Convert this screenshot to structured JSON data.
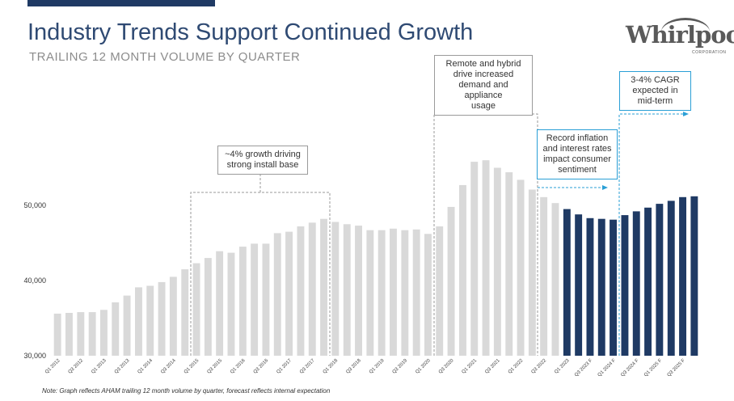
{
  "header": {
    "title": "Industry Trends Support Continued Growth",
    "subtitle": "TRAILING 12 MONTH VOLUME BY QUARTER"
  },
  "logo": {
    "text": "Whirlpool",
    "subtext": "CORPORATION"
  },
  "colors": {
    "actual": "#d9d9d9",
    "forecast": "#1f3a64",
    "title": "#2f4a73",
    "annotation_dash": "#9a9a9a",
    "annotation_blue": "#2a9fd6"
  },
  "annotations": [
    {
      "id": "growth",
      "text": "~4% growth driving strong install base",
      "lines": [
        "~4% growth driving",
        "strong install base"
      ]
    },
    {
      "id": "remote",
      "text": "Remote and hybrid drive increased demand and appliance usage",
      "lines": [
        "Remote and hybrid",
        "drive increased",
        "demand and appliance",
        "usage"
      ]
    },
    {
      "id": "inflation",
      "text": "Record inflation and interest rates impact consumer sentiment",
      "lines": [
        "Record inflation",
        "and interest rates",
        "impact consumer",
        "sentiment"
      ]
    },
    {
      "id": "cagr",
      "text": "3-4% CAGR expected in mid-term",
      "lines": [
        "3-4% CAGR",
        "expected in",
        "mid-term"
      ]
    }
  ],
  "footnote": "Note: Graph reflects AHAM trailing 12 month volume by quarter, forecast reflects internal expectation",
  "chart_data": {
    "type": "bar",
    "title": "TRAILING 12 MONTH VOLUME BY QUARTER",
    "ylim": [
      30000,
      52000
    ],
    "yticks": [
      30000,
      40000,
      50000
    ],
    "ytick_labels": [
      "30,000",
      "40,000",
      "50,000"
    ],
    "grid": false,
    "categories": [
      "Q1 2012",
      "Q2 2012",
      "Q3 2012",
      "Q4 2012",
      "Q1 2013",
      "Q2 2013",
      "Q3 2013",
      "Q4 2013",
      "Q1 2014",
      "Q2 2014",
      "Q3 2014",
      "Q4 2014",
      "Q1 2015",
      "Q2 2015",
      "Q3 2015",
      "Q4 2015",
      "Q1 2016",
      "Q2 2016",
      "Q3 2016",
      "Q4 2016",
      "Q1 2017",
      "Q2 2017",
      "Q3 2017",
      "Q4 2017",
      "Q1 2018",
      "Q2 2018",
      "Q3 2018",
      "Q4 2018",
      "Q1 2019",
      "Q2 2019",
      "Q3 2019",
      "Q4 2019",
      "Q1 2020",
      "Q2 2020",
      "Q3 2020",
      "Q4 2020",
      "Q1 2021",
      "Q2 2021",
      "Q3 2021",
      "Q4 2021",
      "Q1 2022",
      "Q2 2022",
      "Q3 2022",
      "Q4 2022",
      "Q1 2023",
      "Q2 2023",
      "Q3 2023 F",
      "Q4 2023 F",
      "Q1 2024 F",
      "Q2 2024 F",
      "Q3 2024 F",
      "Q4 2024 F",
      "Q1 2025 F",
      "Q2 2025 F",
      "Q3 2025 F",
      "Q4 2025 F"
    ],
    "tick_labels": [
      "Q1 2012",
      "Q3 2012",
      "Q1 2013",
      "Q3 2013",
      "Q1 2014",
      "Q3 2014",
      "Q1 2015",
      "Q3 2015",
      "Q1 2016",
      "Q3 2016",
      "Q1 2017",
      "Q3 2017",
      "Q1 2018",
      "Q3 2018",
      "Q1 2019",
      "Q3 2019",
      "Q1 2020",
      "Q3 2020",
      "Q1 2021",
      "Q3 2021",
      "Q1 2022",
      "Q3 2022",
      "Q1 2023",
      "Q3 2023 F",
      "Q1 2024 F",
      "Q3 2024 F",
      "Q1 2025 F",
      "Q3 2025 F"
    ],
    "values": [
      35600,
      35700,
      35800,
      35800,
      36100,
      37100,
      38000,
      39100,
      39300,
      39800,
      40500,
      41500,
      42300,
      43000,
      43900,
      43700,
      44500,
      44900,
      44900,
      46300,
      46500,
      47200,
      47700,
      48200,
      47800,
      47500,
      47300,
      46700,
      46700,
      46900,
      46700,
      46800,
      46200,
      47200,
      49800,
      52700,
      55800,
      56000,
      55000,
      54400,
      53400,
      52100,
      51100,
      50300,
      49500,
      48800,
      48300,
      48200,
      48100,
      48700,
      49200,
      49700,
      50200,
      50600,
      51100,
      51200
    ],
    "forecast_start_index": 44,
    "series": [
      {
        "name": "Actual",
        "color": "#d9d9d9"
      },
      {
        "name": "Forecast",
        "color": "#1f3a64"
      }
    ]
  }
}
